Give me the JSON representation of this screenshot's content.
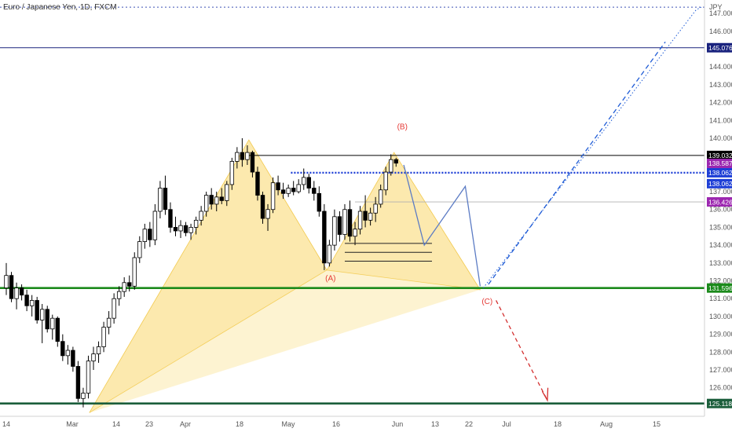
{
  "chart_data": {
    "type": "candlestick",
    "title": "Euro / Japanese Yen, 1D, FXCM",
    "currency": "JPY",
    "ylim": [
      124.4,
      147.4
    ],
    "y_ticks": [
      125.0,
      126.0,
      127.0,
      128.0,
      129.0,
      130.0,
      131.0,
      132.0,
      133.0,
      134.0,
      135.0,
      136.0,
      137.0,
      138.0,
      139.0,
      140.0,
      141.0,
      142.0,
      143.0,
      144.0,
      145.0,
      146.0,
      147.0
    ],
    "y_tick_labels": [
      "125.000",
      "126.000",
      "127.000",
      "128.000",
      "129.000",
      "130.000",
      "131.000",
      "132.000",
      "133.000",
      "134.000",
      "135.000",
      "136.000",
      "137.000",
      "138.000",
      "139.000",
      "140.000",
      "141.000",
      "142.000",
      "143.000",
      "144.000",
      "145.000",
      "146.000",
      "147.000"
    ],
    "x_ticks": [
      "14",
      "Mar",
      "14",
      "23",
      "Apr",
      "18",
      "May",
      "16",
      "Jun",
      "13",
      "22",
      "Jul",
      "18",
      "Aug",
      "15"
    ],
    "candles": [
      {
        "o": 131.6,
        "h": 133.0,
        "l": 131.2,
        "c": 132.3
      },
      {
        "o": 132.3,
        "h": 132.5,
        "l": 130.8,
        "c": 131.0
      },
      {
        "o": 131.0,
        "h": 131.9,
        "l": 130.4,
        "c": 131.6
      },
      {
        "o": 131.6,
        "h": 131.8,
        "l": 130.9,
        "c": 131.2
      },
      {
        "o": 131.2,
        "h": 131.5,
        "l": 130.3,
        "c": 130.6
      },
      {
        "o": 130.6,
        "h": 131.2,
        "l": 130.0,
        "c": 130.9
      },
      {
        "o": 130.9,
        "h": 131.1,
        "l": 129.6,
        "c": 129.8
      },
      {
        "o": 129.8,
        "h": 130.7,
        "l": 128.5,
        "c": 130.4
      },
      {
        "o": 130.4,
        "h": 130.6,
        "l": 129.1,
        "c": 129.3
      },
      {
        "o": 129.3,
        "h": 130.1,
        "l": 128.7,
        "c": 129.9
      },
      {
        "o": 129.9,
        "h": 130.0,
        "l": 128.3,
        "c": 128.6
      },
      {
        "o": 128.6,
        "h": 129.0,
        "l": 127.5,
        "c": 127.8
      },
      {
        "o": 127.8,
        "h": 128.4,
        "l": 127.3,
        "c": 128.1
      },
      {
        "o": 128.1,
        "h": 128.3,
        "l": 126.9,
        "c": 127.2
      },
      {
        "o": 127.2,
        "h": 127.5,
        "l": 125.2,
        "c": 125.4
      },
      {
        "o": 125.4,
        "h": 126.0,
        "l": 124.9,
        "c": 125.7
      },
      {
        "o": 125.7,
        "h": 127.8,
        "l": 125.4,
        "c": 127.5
      },
      {
        "o": 127.5,
        "h": 128.3,
        "l": 127.0,
        "c": 127.9
      },
      {
        "o": 127.9,
        "h": 128.6,
        "l": 127.4,
        "c": 128.3
      },
      {
        "o": 128.3,
        "h": 129.7,
        "l": 128.0,
        "c": 129.4
      },
      {
        "o": 129.4,
        "h": 130.3,
        "l": 129.0,
        "c": 129.9
      },
      {
        "o": 129.9,
        "h": 131.3,
        "l": 129.6,
        "c": 131.0
      },
      {
        "o": 131.0,
        "h": 131.7,
        "l": 130.6,
        "c": 131.4
      },
      {
        "o": 131.4,
        "h": 132.2,
        "l": 131.1,
        "c": 131.9
      },
      {
        "o": 131.9,
        "h": 132.3,
        "l": 131.4,
        "c": 131.7
      },
      {
        "o": 131.7,
        "h": 133.6,
        "l": 131.5,
        "c": 133.3
      },
      {
        "o": 133.3,
        "h": 134.5,
        "l": 133.0,
        "c": 134.2
      },
      {
        "o": 134.2,
        "h": 135.2,
        "l": 133.8,
        "c": 134.9
      },
      {
        "o": 134.9,
        "h": 135.3,
        "l": 133.9,
        "c": 134.3
      },
      {
        "o": 134.3,
        "h": 136.3,
        "l": 134.0,
        "c": 135.9
      },
      {
        "o": 135.9,
        "h": 137.6,
        "l": 135.5,
        "c": 137.2
      },
      {
        "o": 137.2,
        "h": 137.9,
        "l": 135.7,
        "c": 136.0
      },
      {
        "o": 136.0,
        "h": 136.4,
        "l": 134.7,
        "c": 135.0
      },
      {
        "o": 135.0,
        "h": 135.6,
        "l": 134.5,
        "c": 134.8
      },
      {
        "o": 134.8,
        "h": 135.4,
        "l": 134.4,
        "c": 135.1
      },
      {
        "o": 135.1,
        "h": 135.3,
        "l": 134.5,
        "c": 134.7
      },
      {
        "o": 134.7,
        "h": 135.2,
        "l": 134.3,
        "c": 135.0
      },
      {
        "o": 135.0,
        "h": 135.6,
        "l": 134.6,
        "c": 135.4
      },
      {
        "o": 135.4,
        "h": 136.2,
        "l": 135.1,
        "c": 135.9
      },
      {
        "o": 135.9,
        "h": 137.0,
        "l": 135.6,
        "c": 136.8
      },
      {
        "o": 136.8,
        "h": 137.2,
        "l": 136.0,
        "c": 136.3
      },
      {
        "o": 136.3,
        "h": 137.0,
        "l": 135.9,
        "c": 136.7
      },
      {
        "o": 136.7,
        "h": 137.2,
        "l": 136.3,
        "c": 136.5
      },
      {
        "o": 136.5,
        "h": 137.6,
        "l": 136.2,
        "c": 137.4
      },
      {
        "o": 137.4,
        "h": 138.9,
        "l": 137.1,
        "c": 138.7
      },
      {
        "o": 138.7,
        "h": 139.5,
        "l": 138.3,
        "c": 139.2
      },
      {
        "o": 139.2,
        "h": 140.0,
        "l": 138.4,
        "c": 138.8
      },
      {
        "o": 138.8,
        "h": 139.6,
        "l": 138.5,
        "c": 139.2
      },
      {
        "o": 139.2,
        "h": 139.3,
        "l": 137.8,
        "c": 138.1
      },
      {
        "o": 138.1,
        "h": 138.4,
        "l": 136.5,
        "c": 136.8
      },
      {
        "o": 136.8,
        "h": 137.0,
        "l": 135.2,
        "c": 135.5
      },
      {
        "o": 135.5,
        "h": 136.3,
        "l": 134.8,
        "c": 136.0
      },
      {
        "o": 136.0,
        "h": 137.8,
        "l": 135.8,
        "c": 137.5
      },
      {
        "o": 137.5,
        "h": 137.9,
        "l": 136.8,
        "c": 137.1
      },
      {
        "o": 137.1,
        "h": 137.5,
        "l": 136.6,
        "c": 136.9
      },
      {
        "o": 136.9,
        "h": 137.4,
        "l": 136.7,
        "c": 137.2
      },
      {
        "o": 137.2,
        "h": 137.6,
        "l": 136.8,
        "c": 137.0
      },
      {
        "o": 137.0,
        "h": 137.7,
        "l": 136.9,
        "c": 137.4
      },
      {
        "o": 137.4,
        "h": 138.3,
        "l": 137.1,
        "c": 137.8
      },
      {
        "o": 137.8,
        "h": 138.0,
        "l": 136.9,
        "c": 137.2
      },
      {
        "o": 137.2,
        "h": 137.6,
        "l": 136.5,
        "c": 136.9
      },
      {
        "o": 136.9,
        "h": 137.3,
        "l": 135.6,
        "c": 135.9
      },
      {
        "o": 135.9,
        "h": 136.3,
        "l": 132.6,
        "c": 133.0
      },
      {
        "o": 133.0,
        "h": 134.3,
        "l": 132.8,
        "c": 134.0
      },
      {
        "o": 134.0,
        "h": 136.0,
        "l": 133.7,
        "c": 135.6
      },
      {
        "o": 135.6,
        "h": 135.9,
        "l": 134.2,
        "c": 134.6
      },
      {
        "o": 134.6,
        "h": 136.3,
        "l": 134.3,
        "c": 136.0
      },
      {
        "o": 136.0,
        "h": 136.5,
        "l": 134.2,
        "c": 134.5
      },
      {
        "o": 134.5,
        "h": 135.3,
        "l": 134.0,
        "c": 134.9
      },
      {
        "o": 134.9,
        "h": 136.2,
        "l": 134.6,
        "c": 135.9
      },
      {
        "o": 135.9,
        "h": 136.8,
        "l": 135.0,
        "c": 135.4
      },
      {
        "o": 135.4,
        "h": 136.1,
        "l": 135.1,
        "c": 135.8
      },
      {
        "o": 135.8,
        "h": 136.7,
        "l": 135.3,
        "c": 136.3
      },
      {
        "o": 136.3,
        "h": 137.4,
        "l": 136.1,
        "c": 137.1
      },
      {
        "o": 137.1,
        "h": 138.4,
        "l": 136.8,
        "c": 138.1
      },
      {
        "o": 138.1,
        "h": 139.1,
        "l": 137.9,
        "c": 138.8
      },
      {
        "o": 138.8,
        "h": 138.9,
        "l": 138.4,
        "c": 138.6
      }
    ],
    "horizontal_lines": [
      {
        "price": 147.35,
        "color": "#3f51b5",
        "style": "dotted"
      },
      {
        "price": 145.076,
        "color": "#1a237e",
        "style": "solid",
        "label": "145.076",
        "badge": "#1a237e"
      },
      {
        "price": 139.032,
        "color": "#000000",
        "style": "solid",
        "label": "139.032",
        "badge": "#000000"
      },
      {
        "price": 138.062,
        "color": "#1e3fd6",
        "style": "dotted-thick",
        "label": "138.062",
        "badge": "#1e3fd6"
      },
      {
        "price": 136.426,
        "color": "#b0b0b0",
        "style": "solid-thin",
        "label": "136.426",
        "badge": "#9c27b0"
      },
      {
        "price": 131.596,
        "color": "#1b8a1b",
        "style": "solid-thick",
        "label": "131.596",
        "badge": "#1b8a1b"
      },
      {
        "price": 125.118,
        "color": "#1b5e3b",
        "style": "solid-thick",
        "label": "125.118",
        "badge": "#1b5e3b"
      }
    ],
    "extra_price_labels": [
      {
        "label": "138.587",
        "badge": "#9c27b0"
      },
      {
        "label": "138.062",
        "badge": "#1e3fd6"
      }
    ],
    "pattern_labels": [
      "(A)",
      "(B)",
      "(C)"
    ]
  },
  "colors": {
    "pattern_fill": "#fbe49a",
    "projection": "#5b7bc4",
    "bull_candle": "#ffffff",
    "bear_candle": "#000000",
    "label_red": "#e53935"
  }
}
